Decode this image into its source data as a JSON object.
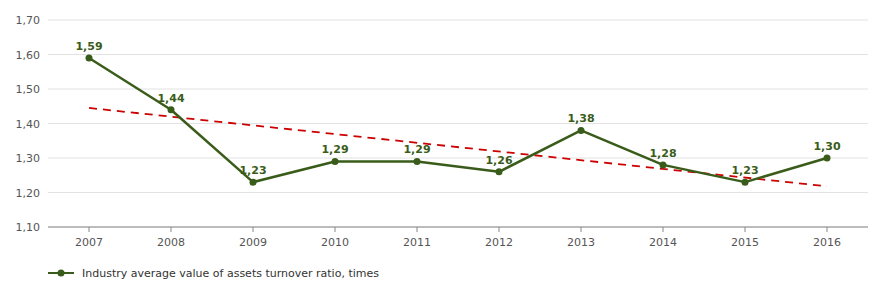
{
  "chart_data": {
    "type": "line",
    "x": [
      2007,
      2008,
      2009,
      2010,
      2011,
      2012,
      2013,
      2014,
      2015,
      2016
    ],
    "xlim": [
      2006.5,
      2016.5
    ],
    "xticks": [
      2007,
      2008,
      2009,
      2010,
      2011,
      2012,
      2013,
      2014,
      2015,
      2016
    ],
    "ylim": [
      1.1,
      1.7
    ],
    "yticks": [
      {
        "value": 1.1,
        "label": "1,10"
      },
      {
        "value": 1.2,
        "label": "1,20"
      },
      {
        "value": 1.3,
        "label": "1,30"
      },
      {
        "value": 1.4,
        "label": "1,40"
      },
      {
        "value": 1.5,
        "label": "1,50"
      },
      {
        "value": 1.6,
        "label": "1,60"
      },
      {
        "value": 1.7,
        "label": "1,70"
      }
    ],
    "grid": true,
    "legend": "bottom",
    "data_labels": true,
    "series": [
      {
        "name": "Industry average value of assets turnover ratio, times",
        "color": "#3a5c1a",
        "marker": "circle",
        "values": [
          1.59,
          1.44,
          1.23,
          1.29,
          1.29,
          1.26,
          1.38,
          1.28,
          1.23,
          1.3
        ],
        "value_labels": [
          "1,59",
          "1,44",
          "1,23",
          "1,29",
          "1,29",
          "1,26",
          "1,38",
          "1,28",
          "1,23",
          "1,30"
        ]
      }
    ],
    "trend": {
      "x": [
        2007,
        2016
      ],
      "values": [
        1.445,
        1.218
      ],
      "color": "#cc0000",
      "line_style": "dashed"
    }
  }
}
